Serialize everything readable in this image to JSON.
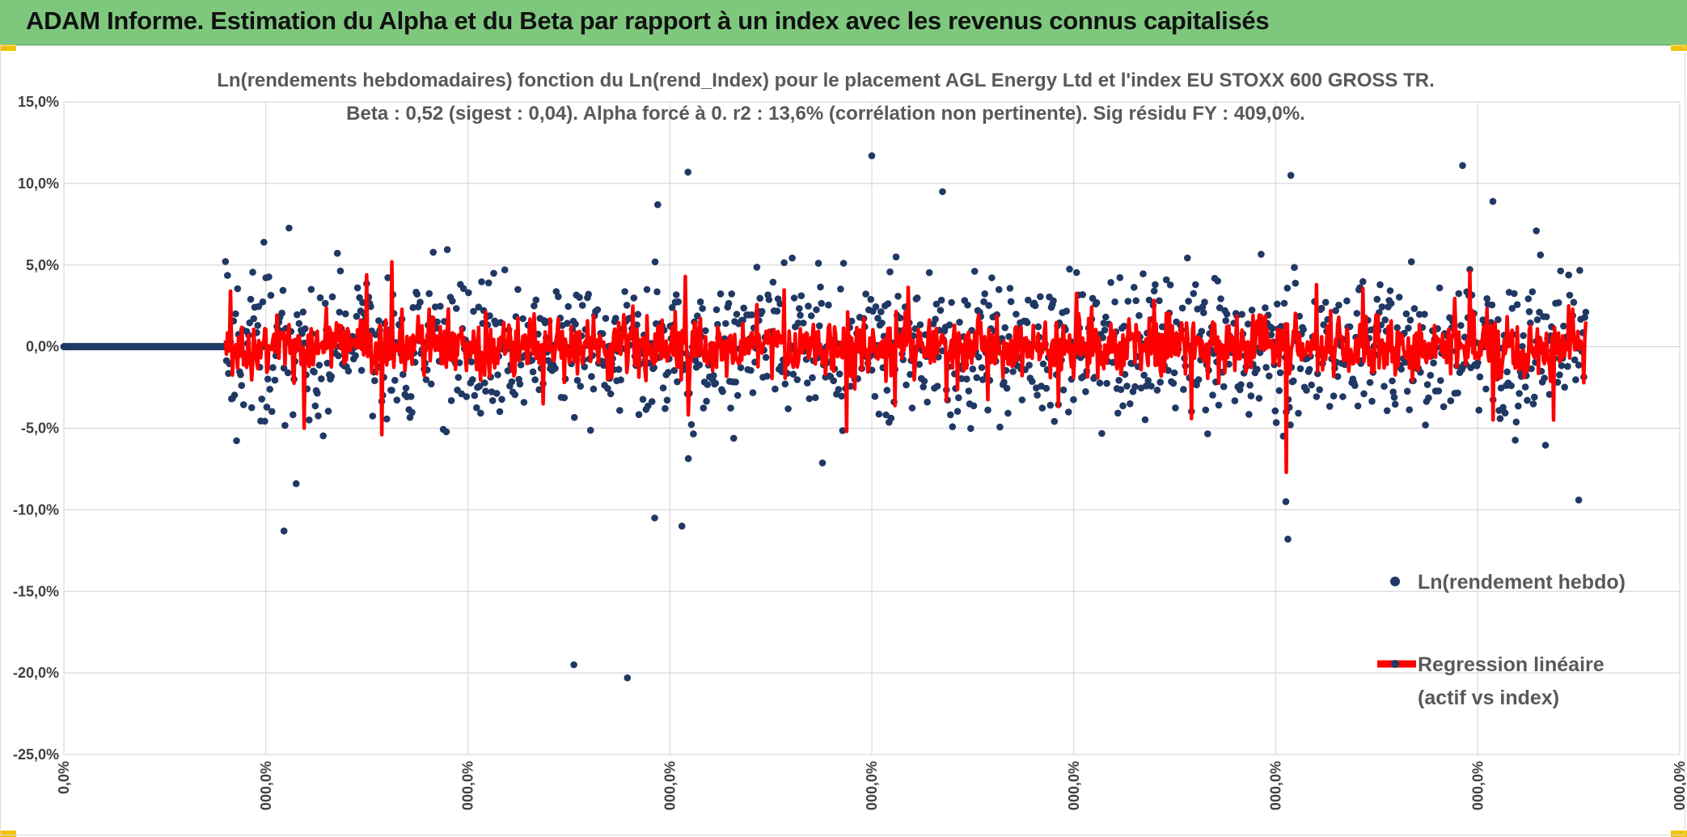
{
  "banner": {
    "title": "ADAM Informe. Estimation du Alpha et du Beta par rapport à un index avec les revenus connus capitalisés",
    "background": "#7ec87e"
  },
  "chart_data": {
    "type": "scatter",
    "title_line1": "Ln(rendements hebdomadaires) fonction du Ln(rend_Index) pour le placement AGL Energy Ltd et l'index EU STOXX 600 GROSS TR.",
    "title_line2": "Beta : 0,52 (sigest : 0,04). Alpha forcé à 0. r2 : 13,6% (corrélation non pertinente). Sig résidu FY : 409,0%.",
    "xlabel": "",
    "ylabel": "",
    "ylim": [
      -0.25,
      0.15
    ],
    "xlim": [
      0,
      1600
    ],
    "grid": true,
    "legend_position": "right",
    "yticks": [
      {
        "value": 0.15,
        "label": "15,0%"
      },
      {
        "value": 0.1,
        "label": "10,0%"
      },
      {
        "value": 0.05,
        "label": "5,0%"
      },
      {
        "value": 0.0,
        "label": "0,0%"
      },
      {
        "value": -0.05,
        "label": "-5,0%"
      },
      {
        "value": -0.1,
        "label": "-10,0%"
      },
      {
        "value": -0.15,
        "label": "-15,0%"
      },
      {
        "value": -0.2,
        "label": "-20,0%"
      },
      {
        "value": -0.25,
        "label": "-25,0%"
      }
    ],
    "xticks": [
      {
        "value": 0,
        "label": "0,0%"
      },
      {
        "value": 200,
        "label": "000,0%"
      },
      {
        "value": 400,
        "label": "000,0%"
      },
      {
        "value": 600,
        "label": "000,0%"
      },
      {
        "value": 800,
        "label": "000,0%"
      },
      {
        "value": 1000,
        "label": "000,0%"
      },
      {
        "value": 1200,
        "label": "000,0%"
      },
      {
        "value": 1400,
        "label": "000,0%"
      },
      {
        "value": 1600,
        "label": "000,0%"
      }
    ],
    "series": [
      {
        "name": "Ln(rendement hebdo)",
        "kind": "points",
        "color": "#203864",
        "flat_segment": {
          "x_start": 0,
          "x_end": 160,
          "y": 0.0
        },
        "data_x_start": 160,
        "data_x_end": 1507,
        "notable_points": [
          {
            "x": 198,
            "y": 0.064
          },
          {
            "x": 218,
            "y": -0.113
          },
          {
            "x": 230,
            "y": -0.084
          },
          {
            "x": 505,
            "y": -0.195
          },
          {
            "x": 558,
            "y": -0.203
          },
          {
            "x": 588,
            "y": 0.087
          },
          {
            "x": 618,
            "y": 0.107
          },
          {
            "x": 612,
            "y": -0.11
          },
          {
            "x": 585,
            "y": -0.105
          },
          {
            "x": 800,
            "y": 0.117
          },
          {
            "x": 870,
            "y": 0.095
          },
          {
            "x": 1215,
            "y": 0.105
          },
          {
            "x": 1212,
            "y": -0.118
          },
          {
            "x": 1210,
            "y": -0.095
          },
          {
            "x": 1385,
            "y": 0.111
          },
          {
            "x": 1415,
            "y": 0.089
          },
          {
            "x": 1458,
            "y": 0.071
          },
          {
            "x": 1500,
            "y": -0.094
          }
        ]
      },
      {
        "name": "Regression linéaire\n(actif vs index)",
        "kind": "line",
        "color": "#ff0000",
        "beta": 0.52,
        "notable_extremes": [
          {
            "x": 325,
            "y": 0.052
          },
          {
            "x": 300,
            "y": 0.044
          },
          {
            "x": 165,
            "y": 0.034
          },
          {
            "x": 238,
            "y": -0.05
          },
          {
            "x": 775,
            "y": -0.052
          },
          {
            "x": 1210,
            "y": -0.077
          },
          {
            "x": 1240,
            "y": 0.038
          },
          {
            "x": 1475,
            "y": -0.045
          },
          {
            "x": 615,
            "y": 0.043
          }
        ]
      }
    ]
  },
  "legend": {
    "items": [
      {
        "label": "Ln(rendement hebdo)",
        "color": "#203864",
        "marker": "dot"
      },
      {
        "label_line1": "Regression linéaire",
        "label_line2": "(actif vs index)",
        "color": "#ff0000",
        "marker": "line"
      }
    ]
  }
}
